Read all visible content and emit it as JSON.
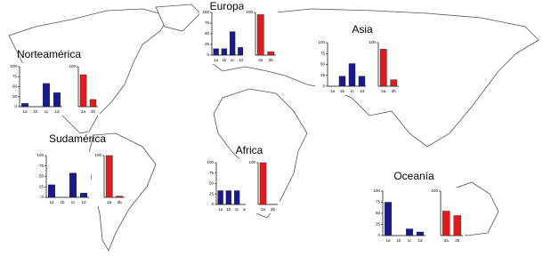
{
  "chart_data": [
    {
      "type": "bar",
      "title": "Norteamérica",
      "categories": [
        "1a",
        "1b",
        "1c",
        "1d"
      ],
      "values": [
        8,
        0,
        58,
        35
      ],
      "color": "#1a1a8c",
      "ylim": [
        0,
        100
      ],
      "yticks": [
        0,
        25,
        50,
        75,
        100
      ]
    },
    {
      "type": "bar",
      "categories": [
        "2a",
        "2b"
      ],
      "values": [
        80,
        18
      ],
      "color": "#e01b1b",
      "ylim": [
        0,
        100
      ],
      "yticks": [
        100
      ]
    },
    {
      "type": "bar",
      "title": "Europa",
      "categories": [
        "1a",
        "1b",
        "1c",
        "1d"
      ],
      "values": [
        15,
        15,
        55,
        18
      ],
      "color": "#1a1a8c",
      "ylim": [
        0,
        100
      ],
      "yticks": [
        0,
        25,
        50,
        75,
        100
      ]
    },
    {
      "type": "bar",
      "categories": [
        "2a",
        "2b"
      ],
      "values": [
        95,
        8
      ],
      "color": "#e01b1b",
      "ylim": [
        0,
        100
      ],
      "yticks": [
        100
      ]
    },
    {
      "type": "bar",
      "title": "Asia",
      "categories": [
        "1a",
        "1b",
        "1c",
        "1d"
      ],
      "values": [
        0,
        23,
        52,
        23
      ],
      "color": "#1a1a8c",
      "ylim": [
        0,
        100
      ],
      "yticks": [
        0,
        25,
        50,
        75,
        100
      ]
    },
    {
      "type": "bar",
      "categories": [
        "2a",
        "2b"
      ],
      "values": [
        85,
        15
      ],
      "color": "#e01b1b",
      "ylim": [
        0,
        100
      ],
      "yticks": [
        100
      ]
    },
    {
      "type": "bar",
      "title": "Sudamérica",
      "categories": [
        "1a",
        "1b",
        "1c",
        "1d"
      ],
      "values": [
        30,
        0,
        58,
        10
      ],
      "color": "#1a1a8c",
      "ylim": [
        0,
        100
      ],
      "yticks": [
        0,
        25,
        50,
        75,
        100
      ]
    },
    {
      "type": "bar",
      "categories": [
        "2a",
        "2b"
      ],
      "values": [
        100,
        3
      ],
      "color": "#e01b1b",
      "ylim": [
        0,
        100
      ],
      "yticks": [
        100
      ]
    },
    {
      "type": "bar",
      "title": "Africa",
      "categories": [
        "1a",
        "1b",
        "1c",
        "1d"
      ],
      "values": [
        33,
        33,
        33,
        0
      ],
      "color": "#1a1a8c",
      "ylim": [
        0,
        100
      ],
      "yticks": [
        0,
        25,
        50,
        75,
        100
      ]
    },
    {
      "type": "bar",
      "categories": [
        "2a",
        "2b"
      ],
      "values": [
        100,
        0
      ],
      "color": "#e01b1b",
      "ylim": [
        0,
        100
      ],
      "yticks": [
        100
      ]
    },
    {
      "type": "bar",
      "title": "Oceanía",
      "categories": [
        "1a",
        "1b",
        "1c",
        "1d"
      ],
      "values": [
        75,
        0,
        15,
        8
      ],
      "color": "#1a1a8c",
      "ylim": [
        0,
        100
      ],
      "yticks": [
        0,
        25,
        50,
        75,
        100
      ]
    },
    {
      "type": "bar",
      "categories": [
        "2a",
        "2b"
      ],
      "values": [
        55,
        45
      ],
      "color": "#e01b1b",
      "ylim": [
        0,
        100
      ],
      "yticks": [
        100
      ]
    }
  ]
}
